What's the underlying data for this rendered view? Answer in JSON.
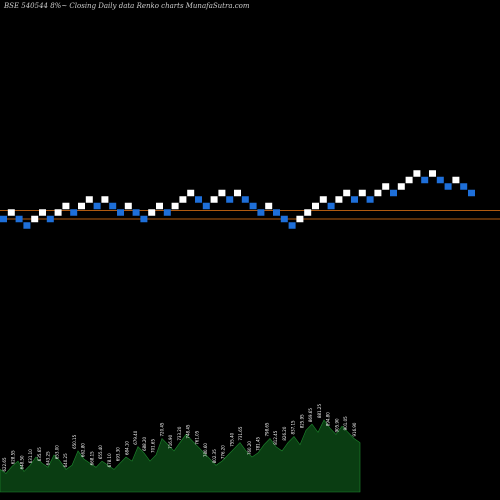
{
  "chart_data": {
    "type": "renko",
    "title": "BSE 540544  8%~   Closing Daily data  Renko  charts MunafaSutra.com",
    "colors": {
      "background": "#000000",
      "up_brick": "#ffffff",
      "down_brick": "#1e6fd9",
      "reference_lines": "#b05a10",
      "volume_area": "#0a3d12",
      "volume_edge": "#1e8a2e",
      "labels": "#ffffff"
    },
    "bricks": [
      {
        "dir": "down",
        "level": 0
      },
      {
        "dir": "up",
        "level": 1
      },
      {
        "dir": "down",
        "level": 0
      },
      {
        "dir": "down",
        "level": -1
      },
      {
        "dir": "up",
        "level": 0
      },
      {
        "dir": "up",
        "level": 1
      },
      {
        "dir": "down",
        "level": 0
      },
      {
        "dir": "up",
        "level": 1
      },
      {
        "dir": "up",
        "level": 2
      },
      {
        "dir": "down",
        "level": 1
      },
      {
        "dir": "up",
        "level": 2
      },
      {
        "dir": "up",
        "level": 3
      },
      {
        "dir": "down",
        "level": 2
      },
      {
        "dir": "up",
        "level": 3
      },
      {
        "dir": "down",
        "level": 2
      },
      {
        "dir": "down",
        "level": 1
      },
      {
        "dir": "up",
        "level": 2
      },
      {
        "dir": "down",
        "level": 1
      },
      {
        "dir": "down",
        "level": 0
      },
      {
        "dir": "up",
        "level": 1
      },
      {
        "dir": "up",
        "level": 2
      },
      {
        "dir": "down",
        "level": 1
      },
      {
        "dir": "up",
        "level": 2
      },
      {
        "dir": "up",
        "level": 3
      },
      {
        "dir": "up",
        "level": 4
      },
      {
        "dir": "down",
        "level": 3
      },
      {
        "dir": "down",
        "level": 2
      },
      {
        "dir": "up",
        "level": 3
      },
      {
        "dir": "up",
        "level": 4
      },
      {
        "dir": "down",
        "level": 3
      },
      {
        "dir": "up",
        "level": 4
      },
      {
        "dir": "down",
        "level": 3
      },
      {
        "dir": "down",
        "level": 2
      },
      {
        "dir": "down",
        "level": 1
      },
      {
        "dir": "up",
        "level": 2
      },
      {
        "dir": "down",
        "level": 1
      },
      {
        "dir": "down",
        "level": 0
      },
      {
        "dir": "down",
        "level": -1
      },
      {
        "dir": "up",
        "level": 0
      },
      {
        "dir": "up",
        "level": 1
      },
      {
        "dir": "up",
        "level": 2
      },
      {
        "dir": "up",
        "level": 3
      },
      {
        "dir": "down",
        "level": 2
      },
      {
        "dir": "up",
        "level": 3
      },
      {
        "dir": "up",
        "level": 4
      },
      {
        "dir": "down",
        "level": 3
      },
      {
        "dir": "up",
        "level": 4
      },
      {
        "dir": "down",
        "level": 3
      },
      {
        "dir": "up",
        "level": 4
      },
      {
        "dir": "up",
        "level": 5
      },
      {
        "dir": "down",
        "level": 4
      },
      {
        "dir": "up",
        "level": 5
      },
      {
        "dir": "up",
        "level": 6
      },
      {
        "dir": "up",
        "level": 7
      },
      {
        "dir": "down",
        "level": 6
      },
      {
        "dir": "up",
        "level": 7
      },
      {
        "dir": "down",
        "level": 6
      },
      {
        "dir": "down",
        "level": 5
      },
      {
        "dir": "up",
        "level": 6
      },
      {
        "dir": "down",
        "level": 5
      },
      {
        "dir": "down",
        "level": 4
      }
    ],
    "reference_lines": [
      {
        "level": 1.3
      },
      {
        "level": 0.0
      }
    ],
    "volume": [
      22,
      18,
      25,
      30,
      20,
      26,
      34,
      28,
      24,
      36,
      30,
      22,
      26,
      40,
      32,
      28,
      24,
      30,
      26,
      22,
      28,
      34,
      30,
      44,
      38,
      30,
      36,
      52,
      46,
      40,
      48,
      56,
      50,
      44,
      38,
      32,
      26,
      30,
      36,
      42,
      48,
      40,
      34,
      38,
      46,
      52,
      44,
      40,
      48,
      54,
      46,
      60,
      66,
      58,
      70,
      62,
      56,
      64,
      58,
      52,
      48
    ],
    "volume_labels": [
      "622.65",
      "628.55",
      "648.50",
      "631.10",
      "635.65",
      "643.25",
      "653.00",
      "640.25",
      "650.15",
      "662.80",
      "668.15",
      "655.40",
      "678.10",
      "693.30",
      "684.10",
      "679.40",
      "688.20",
      "701.65",
      "720.45",
      "716.90",
      "733.20",
      "748.45",
      "761.05",
      "780.60",
      "802.35",
      "776.20",
      "755.40",
      "731.65",
      "760.20",
      "781.45",
      "798.65",
      "812.45",
      "826.20",
      "837.15",
      "825.95",
      "869.65",
      "881.25",
      "894.80",
      "905.90",
      "901.05",
      "916.90"
    ]
  }
}
